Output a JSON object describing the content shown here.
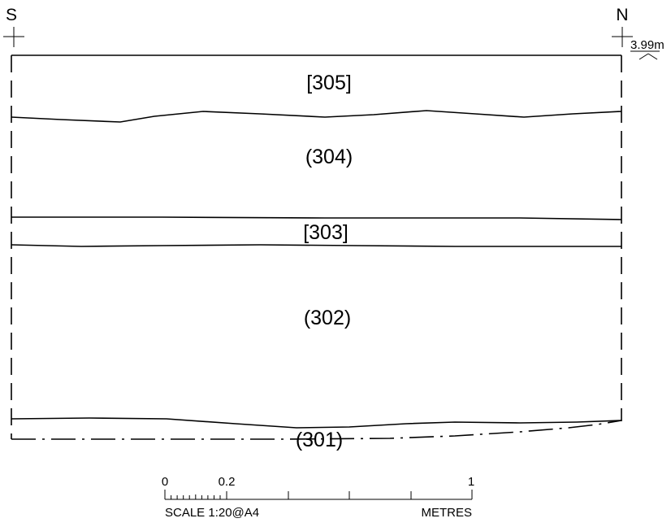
{
  "section": {
    "south_label": "S",
    "north_label": "N",
    "datum_level": "3.99m"
  },
  "contexts": [
    {
      "id": "ctx-305",
      "label": "[305]"
    },
    {
      "id": "ctx-304",
      "label": "(304)"
    },
    {
      "id": "ctx-303",
      "label": "[303]"
    },
    {
      "id": "ctx-302",
      "label": "(302)"
    },
    {
      "id": "ctx-301",
      "label": "(301)"
    }
  ],
  "scale_bar": {
    "tick_0": "0",
    "tick_02": "0.2",
    "tick_1": "1",
    "scale_text": "SCALE 1:20@A4",
    "units_text": "METRES"
  }
}
